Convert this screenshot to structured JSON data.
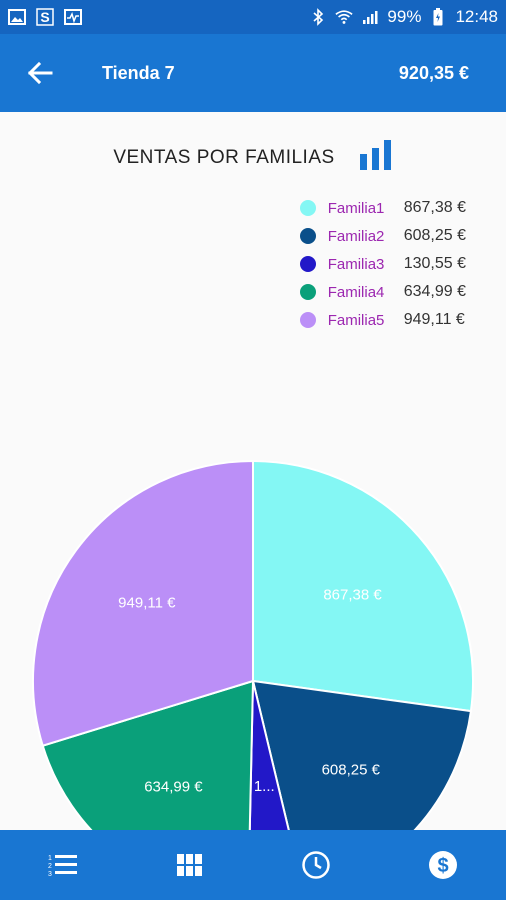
{
  "status_bar": {
    "battery": "99%",
    "time": "12:48"
  },
  "app_bar": {
    "title": "Tienda 7",
    "total": "920,35 €"
  },
  "chart_title": "VENTAS POR FAMILIAS",
  "chart_data": {
    "type": "pie",
    "title": "VENTAS POR FAMILIAS",
    "legend_position": "top-right",
    "slices": [
      {
        "name": "Familia1",
        "value": 867.38,
        "label": "867,38 €",
        "color": "#84f7f4"
      },
      {
        "name": "Familia2",
        "value": 608.25,
        "label": "608,25 €",
        "color": "#0a4f8a"
      },
      {
        "name": "Familia3",
        "value": 130.55,
        "label": "130,55 €",
        "short_label": "1...",
        "color": "#2218c8"
      },
      {
        "name": "Familia4",
        "value": 634.99,
        "label": "634,99 €",
        "color": "#0aa07a"
      },
      {
        "name": "Familia5",
        "value": 949.11,
        "label": "949,11 €",
        "color": "#bb8ff7"
      }
    ]
  },
  "colors": {
    "primary": "#1976d2",
    "status": "#1565c0",
    "legend_text": "#9c27b0"
  }
}
